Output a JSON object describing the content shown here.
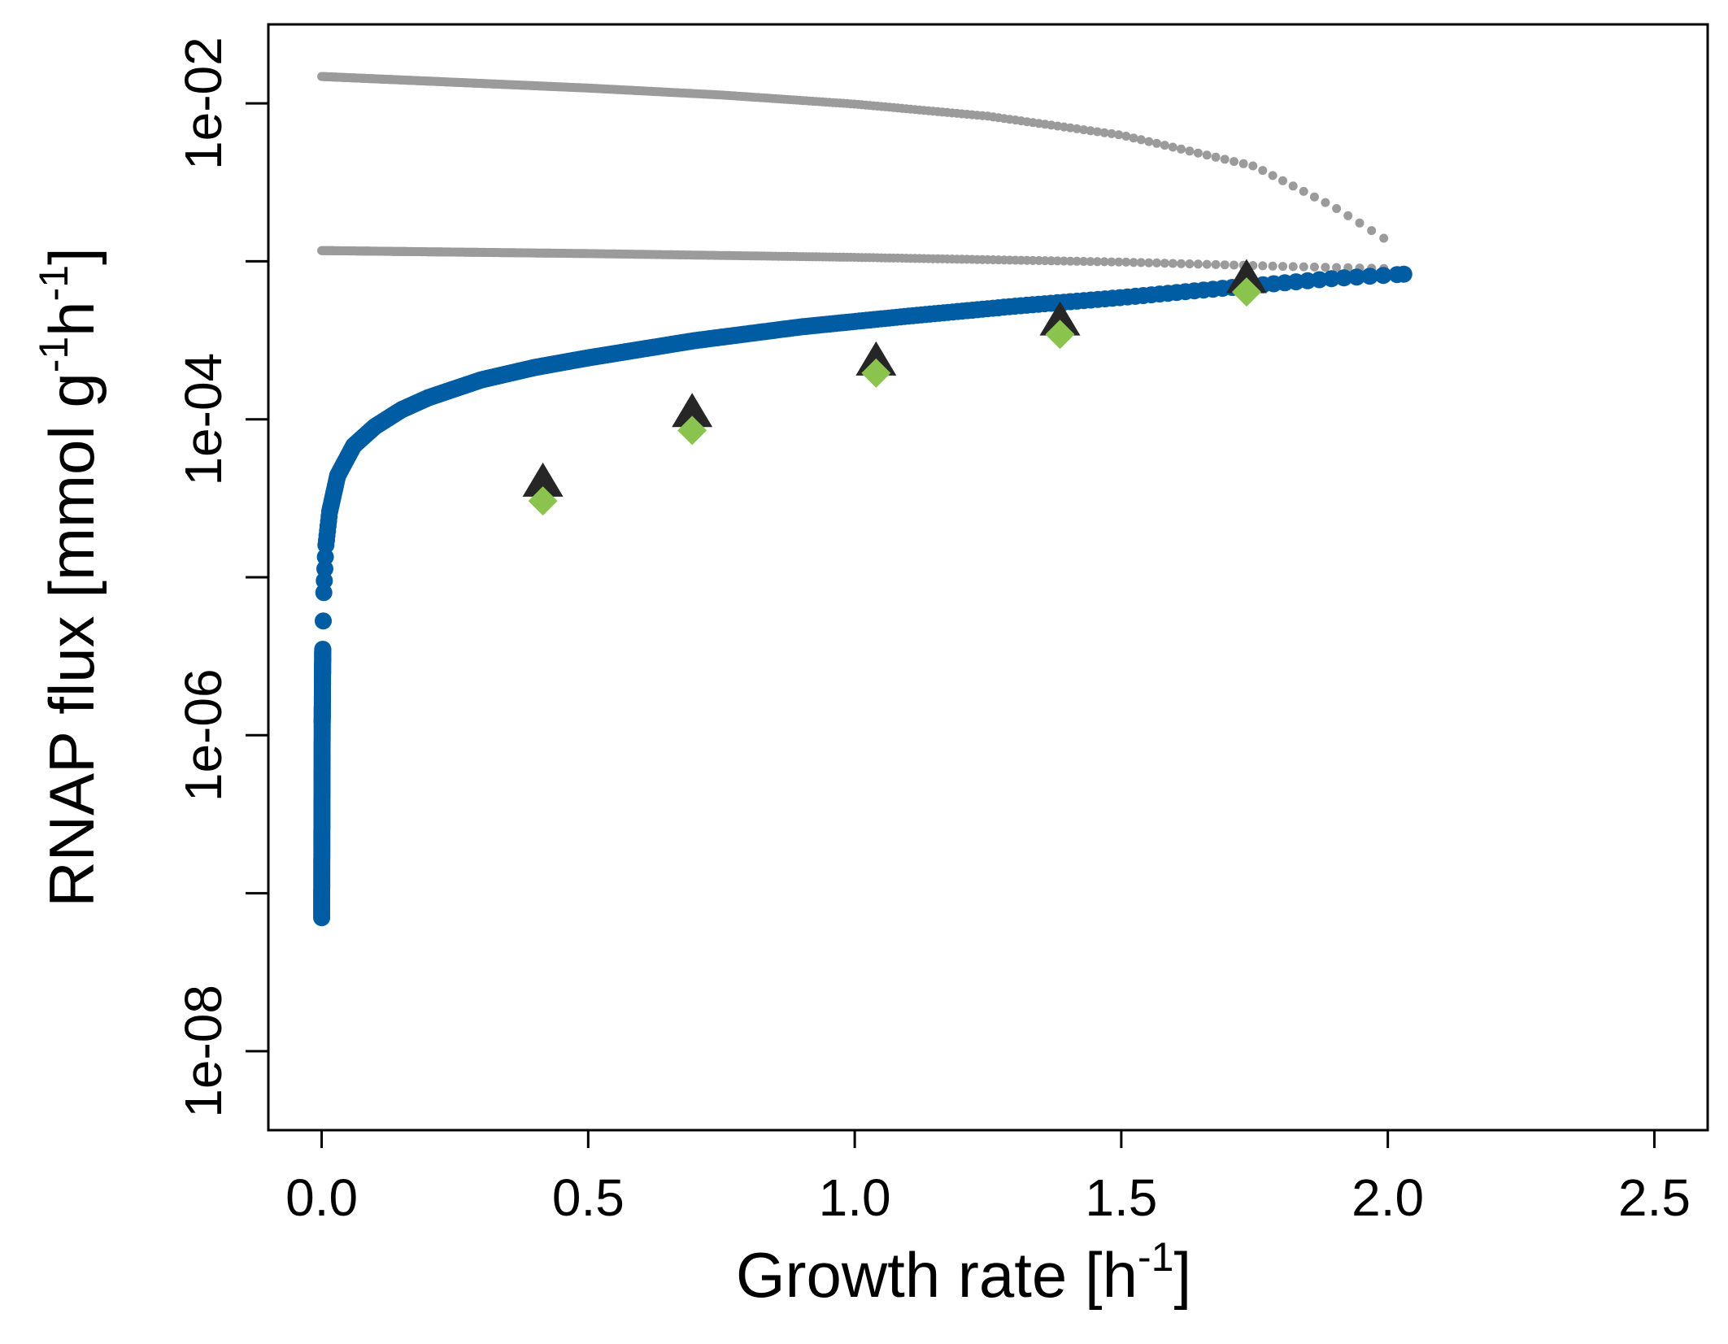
{
  "chart_data": {
    "type": "scatter",
    "title": "",
    "xlabel": "Growth rate [h",
    "xlabel_sup": "-1",
    "xlabel_tail": "]",
    "ylabel_parts": [
      "RNAP flux [mmol g",
      "-1",
      "h",
      "-1",
      "]"
    ],
    "xlim": [
      -0.1,
      2.6
    ],
    "ylim_log10": [
      -8.5,
      -1.5
    ],
    "y_scale": "log",
    "x_ticks": [
      0.0,
      0.5,
      1.0,
      1.5,
      2.0,
      2.5
    ],
    "x_tick_labels": [
      "0.0",
      "0.5",
      "1.0",
      "1.5",
      "2.0",
      "2.5"
    ],
    "y_ticks_log10": [
      -8,
      -7,
      -6,
      -5,
      -4,
      -3,
      -2
    ],
    "y_labeled_ticks": [
      {
        "log10": -2,
        "label": "1e-02"
      },
      {
        "log10": -4,
        "label": "1e-04"
      },
      {
        "log10": -6,
        "label": "1e-06"
      },
      {
        "log10": -8,
        "label": "1e-08"
      }
    ],
    "grid": false,
    "colors": {
      "model_blue": "#005da3",
      "bound_gray": "#9b9b9b",
      "triangle": "#262626",
      "diamond": "#8bc34f"
    },
    "series": [
      {
        "kind": "gray-upper-dotted",
        "points": [
          [
            0.0,
            0.0148
          ],
          [
            0.25,
            0.0136
          ],
          [
            0.5,
            0.0125
          ],
          [
            0.75,
            0.0113
          ],
          [
            1.0,
            0.0099
          ],
          [
            1.25,
            0.0083
          ],
          [
            1.5,
            0.0063
          ],
          [
            1.75,
            0.004
          ],
          [
            1.9,
            0.0022
          ],
          [
            2.0,
            0.00135
          ]
        ]
      },
      {
        "kind": "gray-lower-dotted",
        "points": [
          [
            0.0,
            0.00117
          ],
          [
            0.5,
            0.00112
          ],
          [
            1.0,
            0.00106
          ],
          [
            1.5,
            0.00099
          ],
          [
            1.8,
            0.00093
          ],
          [
            2.0,
            0.0009
          ]
        ]
      },
      {
        "kind": "blue-model",
        "points": [
          [
            0.0,
            7e-08
          ],
          [
            0.0005,
            3e-07
          ],
          [
            0.001,
            1.2e-06
          ],
          [
            0.002,
            3.5e-06
          ],
          [
            0.004,
            8e-06
          ],
          [
            0.008,
            1.6e-05
          ],
          [
            0.015,
            2.6e-05
          ],
          [
            0.03,
            4.4e-05
          ],
          [
            0.06,
            6.8e-05
          ],
          [
            0.1,
            9e-05
          ],
          [
            0.15,
            0.000115
          ],
          [
            0.2,
            0.000137
          ],
          [
            0.3,
            0.000178
          ],
          [
            0.4,
            0.000213
          ],
          [
            0.5,
            0.000245
          ],
          [
            0.7,
            0.000315
          ],
          [
            0.9,
            0.000385
          ],
          [
            1.1,
            0.00045
          ],
          [
            1.3,
            0.00052
          ],
          [
            1.5,
            0.00059
          ],
          [
            1.7,
            0.00068
          ],
          [
            1.9,
            0.00078
          ],
          [
            2.03,
            0.00083
          ]
        ]
      },
      {
        "kind": "triangles",
        "points": [
          [
            0.415,
            3.95e-05
          ],
          [
            0.695,
            0.000109
          ],
          [
            1.04,
            0.000231
          ],
          [
            1.385,
            0.000414
          ],
          [
            1.735,
            0.000768
          ]
        ]
      },
      {
        "kind": "diamonds",
        "points": [
          [
            0.415,
            3.04e-05
          ],
          [
            0.695,
            8.5e-05
          ],
          [
            1.04,
            0.000196
          ],
          [
            1.385,
            0.000345
          ],
          [
            1.735,
            0.00064
          ]
        ]
      }
    ]
  }
}
